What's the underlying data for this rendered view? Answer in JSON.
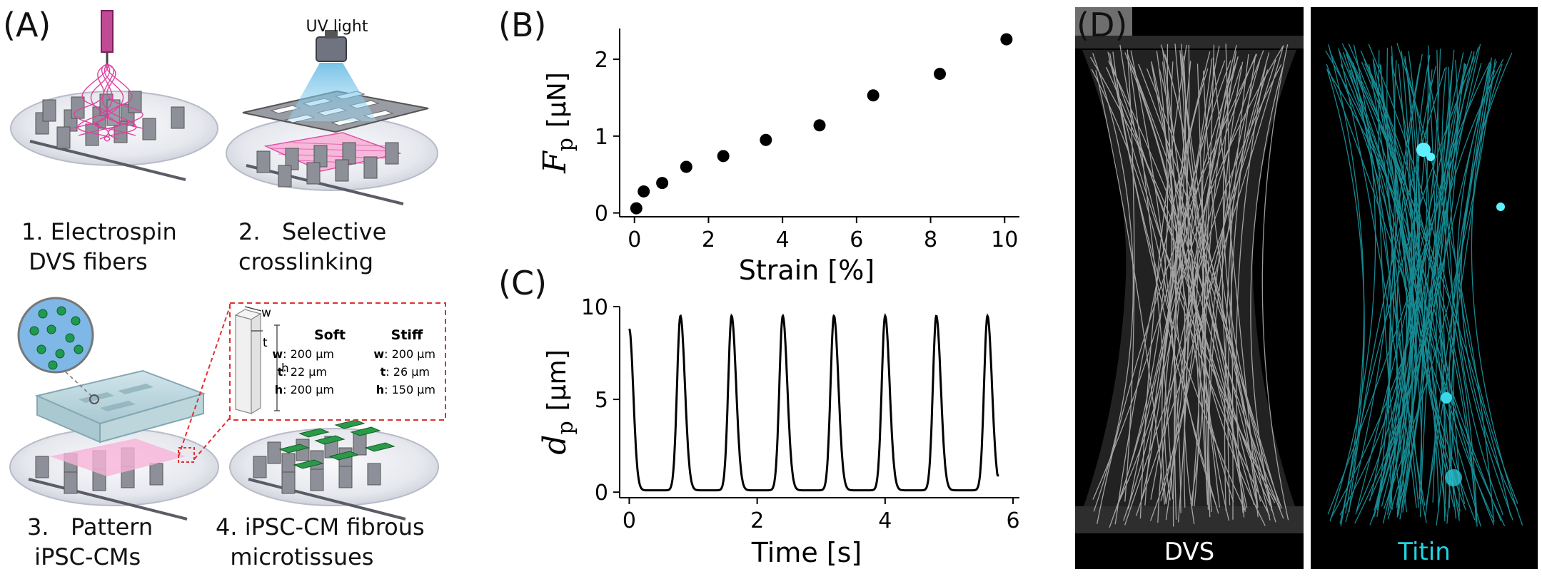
{
  "panels": {
    "a": {
      "label": "(A)",
      "uv_label": "UV light",
      "steps": [
        {
          "num": "1.",
          "text": "Electrospin\n DVS fibers"
        },
        {
          "num": "2.",
          "text": "  Selective\ncrosslinking"
        },
        {
          "num": "3.",
          "text": "  Pattern\n iPSC-CMs"
        },
        {
          "num": "4.",
          "text": "iPSC-CM fibrous\n  microtissues"
        }
      ],
      "inset": {
        "dim_w": "w",
        "dim_t": "t",
        "dim_h": "h",
        "soft": {
          "title": "Soft",
          "w": "200 µm",
          "t": "22 µm",
          "h": "200 µm"
        },
        "stiff": {
          "title": "Stiff",
          "w": "200 µm",
          "t": "26 µm",
          "h": "150 µm"
        },
        "keys": {
          "w": "w",
          "t": "t",
          "h": "h"
        }
      },
      "colors": {
        "fiber": "#e040a0",
        "pink": "#f27ac0",
        "cell": "#2a9a48",
        "beam": "#6cc4ea"
      }
    },
    "b": {
      "label": "(B)"
    },
    "c": {
      "label": "(C)"
    },
    "d": {
      "label": "(D)",
      "left_caption": "DVS",
      "right_caption": "Titin",
      "titin_color": "#22d3e0"
    }
  },
  "chart_data": [
    {
      "type": "scatter",
      "panel": "B",
      "xlabel": "Strain [%]",
      "ylabel_main": "F",
      "ylabel_sub": "p",
      "ylabel_unit": "[µN]",
      "xlim": [
        -0.4,
        10.4
      ],
      "ylim": [
        -0.05,
        2.4
      ],
      "xticks": [
        0,
        2,
        4,
        6,
        8,
        10
      ],
      "yticks": [
        0,
        1,
        2
      ],
      "x": [
        0.05,
        0.25,
        0.75,
        1.4,
        2.4,
        3.55,
        5.0,
        6.45,
        8.25,
        10.05
      ],
      "y": [
        0.06,
        0.28,
        0.39,
        0.6,
        0.74,
        0.95,
        1.14,
        1.53,
        1.81,
        2.26
      ]
    },
    {
      "type": "line",
      "panel": "C",
      "xlabel": "Time [s]",
      "ylabel_main": "d",
      "ylabel_sub": "p",
      "ylabel_unit": "[µm]",
      "xlim": [
        -0.15,
        6.1
      ],
      "ylim": [
        -0.3,
        10.0
      ],
      "xticks": [
        0,
        2,
        4,
        6
      ],
      "yticks": [
        0,
        5,
        10
      ],
      "start_value": 8.8,
      "baseline": 0.1,
      "peak_value": 9.5,
      "peak_times": [
        0.8,
        1.6,
        2.4,
        3.2,
        4.0,
        4.8,
        5.6
      ],
      "end_time": 5.78,
      "end_value": 0.9
    }
  ]
}
